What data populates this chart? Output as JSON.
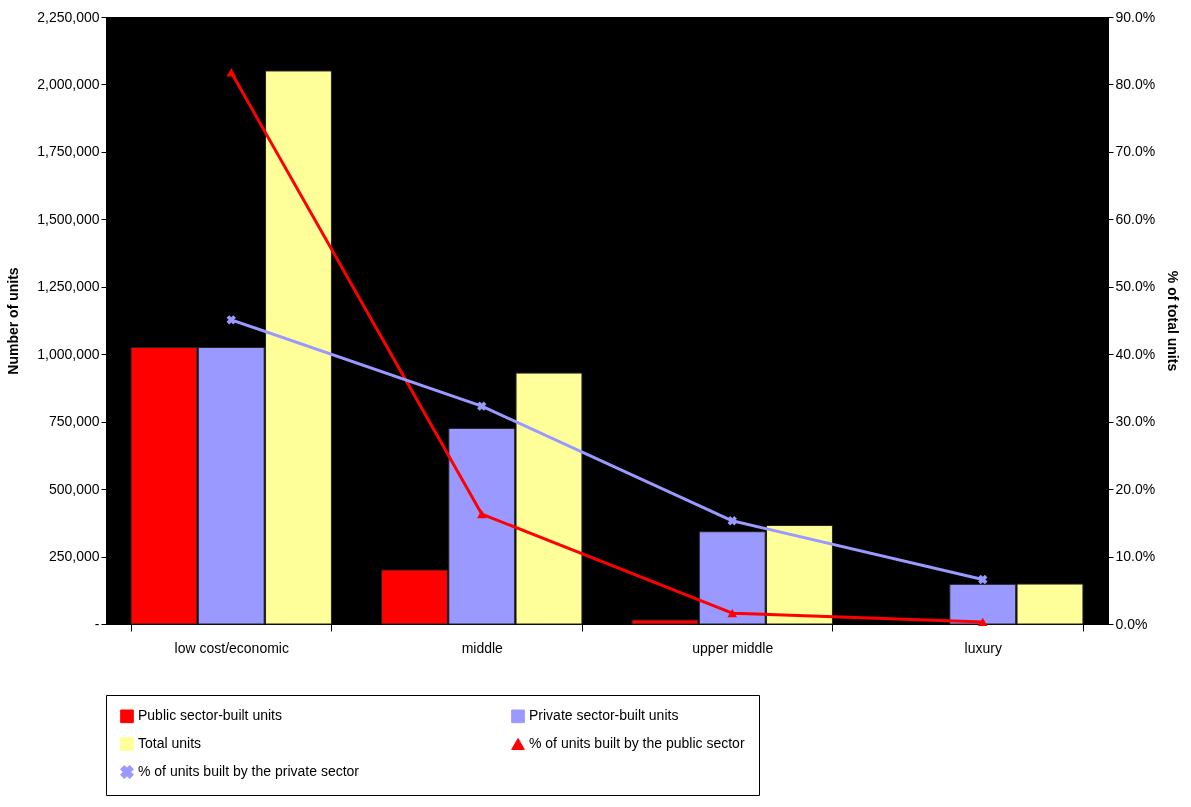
{
  "chart_data": {
    "type": "bar",
    "xlabel": null,
    "ylabel": "Number of units",
    "y2label": "% of total units",
    "categories": [
      "low cost/economic",
      "middle",
      "upper middle",
      "luxury"
    ],
    "series": [
      {
        "name": "Public sector-built units",
        "color": "#ff0000",
        "values": [
          1025000,
          200000,
          15000,
          0
        ]
      },
      {
        "name": "Private sector-built units",
        "color": "#9999ff",
        "values": [
          1025000,
          725000,
          342000,
          147000
        ]
      },
      {
        "name": "Total units",
        "color": "#ffff99",
        "values": [
          2050000,
          930000,
          365000,
          148000
        ]
      },
      {
        "name": "% of units built by the public sector",
        "type": "line",
        "axis": "y2",
        "marker": "triangle",
        "color": "#ff0000",
        "values": [
          81.8,
          16.3,
          1.6,
          0.3
        ]
      },
      {
        "name": "% of units built by the private sector",
        "type": "line",
        "axis": "y2",
        "marker": "cross",
        "color": "#9999ff",
        "values": [
          45.1,
          32.3,
          15.3,
          6.6
        ]
      }
    ],
    "ylim": [
      0,
      2250000
    ],
    "yticks": [
      {
        "value": 0,
        "label": "-"
      },
      {
        "value": 250000,
        "label": "250,000"
      },
      {
        "value": 500000,
        "label": "500,000"
      },
      {
        "value": 750000,
        "label": "750,000"
      },
      {
        "value": 1000000,
        "label": "1,000,000"
      },
      {
        "value": 1250000,
        "label": "1,250,000"
      },
      {
        "value": 1500000,
        "label": "1,500,000"
      },
      {
        "value": 1750000,
        "label": "1,750,000"
      },
      {
        "value": 2000000,
        "label": "2,000,000"
      },
      {
        "value": 2250000,
        "label": "2,250,000"
      }
    ],
    "y2lim": [
      0,
      90
    ],
    "y2ticks": [
      {
        "value": 0,
        "label": "0.0%"
      },
      {
        "value": 10,
        "label": "10.0%"
      },
      {
        "value": 20,
        "label": "20.0%"
      },
      {
        "value": 30,
        "label": "30.0%"
      },
      {
        "value": 40,
        "label": "40.0%"
      },
      {
        "value": 50,
        "label": "50.0%"
      },
      {
        "value": 60,
        "label": "60.0%"
      },
      {
        "value": 70,
        "label": "70.0%"
      },
      {
        "value": 80,
        "label": "80.0%"
      },
      {
        "value": 90,
        "label": "90.0%"
      }
    ],
    "legend": "bottom",
    "grid": false
  }
}
